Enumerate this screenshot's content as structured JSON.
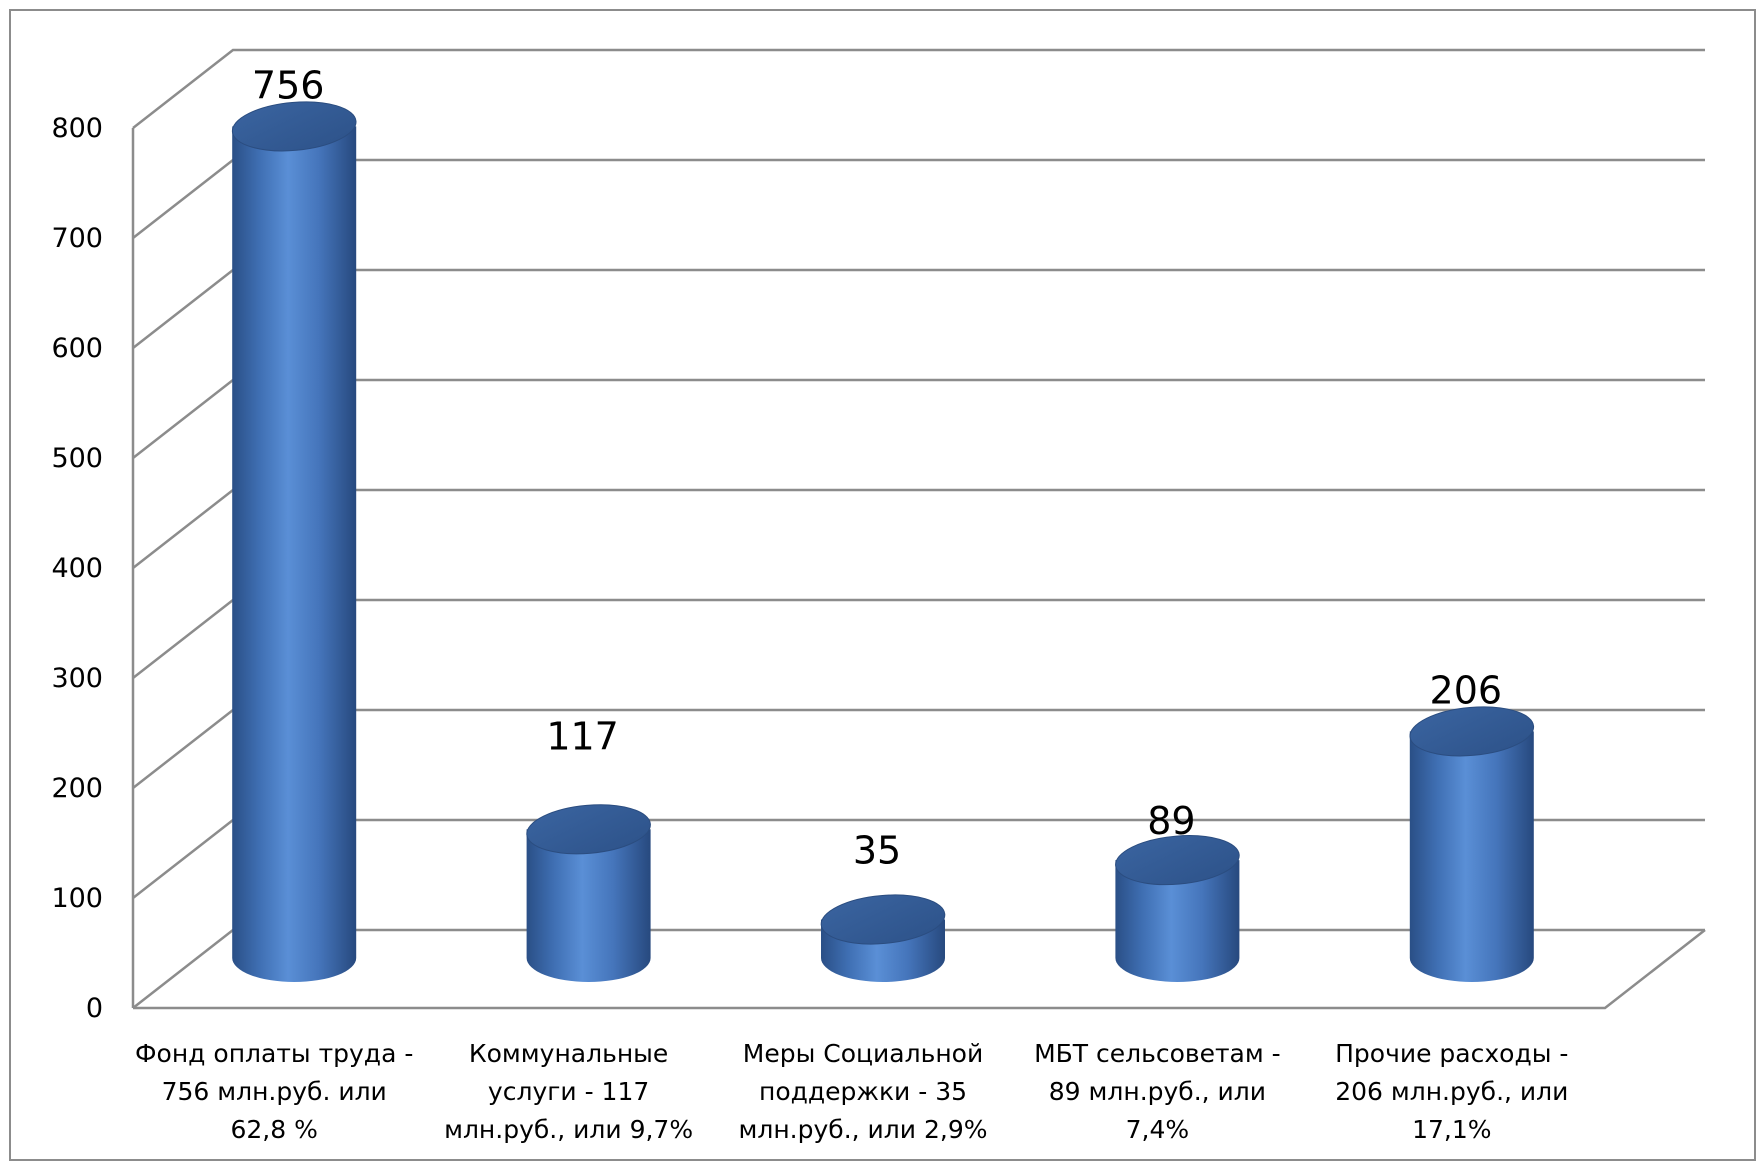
{
  "chart_data": {
    "type": "bar",
    "style": "3d-cylinder",
    "title": "",
    "xlabel": "",
    "ylabel": "",
    "ylim": [
      0,
      800
    ],
    "yticks": [
      0,
      100,
      200,
      300,
      400,
      500,
      600,
      700,
      800
    ],
    "ytick_labels": [
      "0",
      "100",
      "200",
      "300",
      "400",
      "500",
      "600",
      "700",
      "800"
    ],
    "grid": true,
    "legend": "none",
    "bar_color": "#4f81bd",
    "categories": [
      [
        "Фонд оплаты труда -",
        "756 млн.руб. или",
        "62,8 %"
      ],
      [
        "Коммунальные",
        "услуги - 117",
        "млн.руб., или 9,7%"
      ],
      [
        "Меры Социальной",
        "поддержки - 35",
        "млн.руб., или 2,9%"
      ],
      [
        "МБТ сельсоветам -",
        "89 млн.руб., или",
        "7,4%"
      ],
      [
        "Прочие расходы -",
        "206 млн.руб., или",
        "17,1%"
      ]
    ],
    "values": [
      756,
      117,
      35,
      89,
      206
    ],
    "data_labels": [
      "756",
      "117",
      "35",
      "89",
      "206"
    ]
  }
}
